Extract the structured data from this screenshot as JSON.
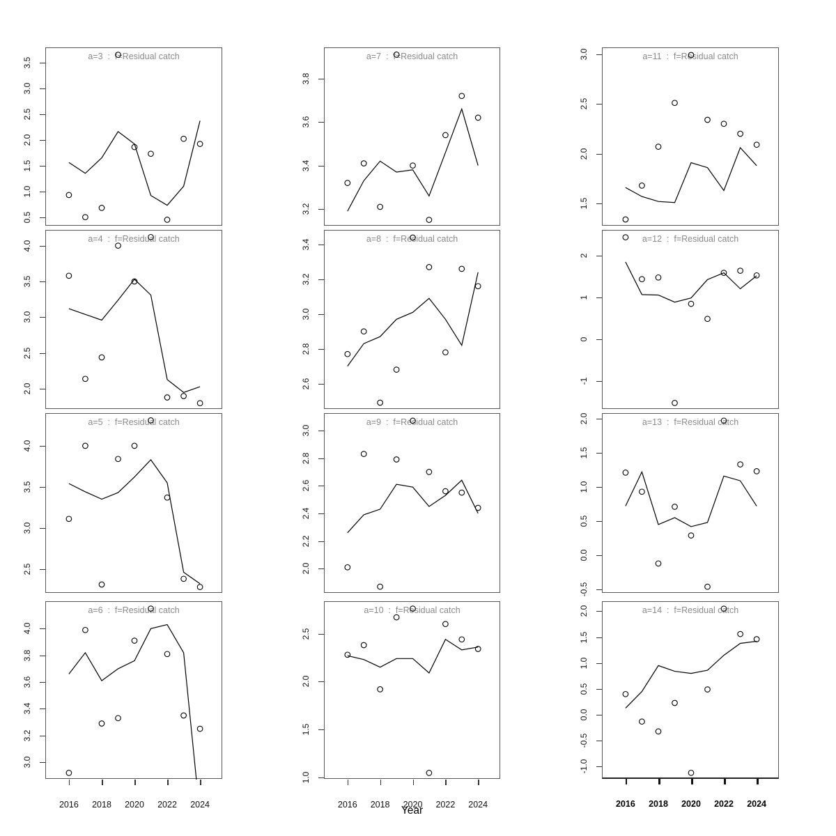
{
  "figure": {
    "xlabel": "Year",
    "x_tick_labels": [
      "2016",
      "2018",
      "2020",
      "2022",
      "2024"
    ]
  },
  "chart_data": {
    "type": "line",
    "description": "4x3 grid of residual-catch panels: fitted line plus open-circle observations per age",
    "xlabel": "Year",
    "x": [
      2016,
      2017,
      2018,
      2019,
      2020,
      2021,
      2022,
      2023,
      2024
    ],
    "x_ticks": [
      2016,
      2018,
      2020,
      2022,
      2024
    ],
    "xlim": [
      2014.6,
      2025.4
    ],
    "grid": false,
    "legend": "none",
    "marker": "open-circle",
    "line_color": "#000000",
    "point_color": "#000000",
    "title_color": "#8a8a8a",
    "panels": [
      {
        "id": "a-3",
        "title": "a=3  :  f=Residual catch",
        "row": 0,
        "col": 0,
        "yticks": [
          "0.5",
          "1.0",
          "1.5",
          "2.0",
          "2.5",
          "3.0",
          "3.5"
        ],
        "ytick_vals": [
          0.5,
          1.0,
          1.5,
          2.0,
          2.5,
          3.0,
          3.5
        ],
        "ylim": [
          0.32,
          3.78
        ],
        "points": [
          0.93,
          0.5,
          0.68,
          3.65,
          1.86,
          1.73,
          0.45,
          2.02,
          1.92
        ],
        "line": [
          1.56,
          1.35,
          1.65,
          2.16,
          1.92,
          0.92,
          0.73,
          1.1,
          2.37
        ]
      },
      {
        "id": "a-4",
        "title": "a=4  :  f=Residual catch",
        "row": 1,
        "col": 0,
        "yticks": [
          "2.0",
          "2.5",
          "3.0",
          "3.5",
          "4.0"
        ],
        "ytick_vals": [
          2.0,
          2.5,
          3.0,
          3.5,
          4.0
        ],
        "ylim": [
          1.71,
          4.21
        ],
        "points": [
          3.58,
          2.14,
          2.44,
          4.0,
          3.5,
          4.12,
          1.88,
          1.9,
          1.8
        ],
        "line": [
          3.12,
          3.04,
          2.96,
          3.24,
          3.53,
          3.31,
          2.13,
          1.95,
          2.03
        ]
      },
      {
        "id": "a-5",
        "title": "a=5  :  f=Residual catch",
        "row": 2,
        "col": 0,
        "yticks": [
          "2.5",
          "3.0",
          "3.5",
          "4.0"
        ],
        "ytick_vals": [
          2.5,
          3.0,
          3.5,
          4.0
        ],
        "ylim": [
          2.2,
          4.39
        ],
        "points": [
          3.11,
          4.0,
          2.31,
          3.84,
          4.0,
          4.31,
          3.37,
          2.38,
          2.28
        ],
        "line": [
          3.54,
          3.44,
          3.35,
          3.43,
          3.62,
          3.83,
          3.55,
          2.46,
          2.32
        ]
      },
      {
        "id": "a-6",
        "title": "a=6  :  f=Residual catch",
        "row": 3,
        "col": 0,
        "yticks": [
          "3.0",
          "3.2",
          "3.4",
          "3.6",
          "3.8",
          "4.0"
        ],
        "ytick_vals": [
          3.0,
          3.2,
          3.4,
          3.6,
          3.8,
          4.0
        ],
        "ylim": [
          2.87,
          4.2
        ],
        "points": [
          2.92,
          3.99,
          3.29,
          3.33,
          3.91,
          4.15,
          3.81,
          3.35,
          3.25
        ],
        "line": [
          3.66,
          3.82,
          3.61,
          3.7,
          3.76,
          4.0,
          4.03,
          3.82,
          2.6
        ]
      },
      {
        "id": "a-7",
        "title": "a=7  :  f=Residual catch",
        "row": 0,
        "col": 1,
        "yticks": [
          "3.2",
          "3.4",
          "3.6",
          "3.8"
        ],
        "ytick_vals": [
          3.2,
          3.4,
          3.6,
          3.8
        ],
        "ylim": [
          3.12,
          3.94
        ],
        "points": [
          3.32,
          3.41,
          3.21,
          3.91,
          3.4,
          3.15,
          3.54,
          3.72,
          3.62
        ],
        "line": [
          3.19,
          3.33,
          3.42,
          3.37,
          3.38,
          3.26,
          3.46,
          3.66,
          3.4
        ]
      },
      {
        "id": "a-8",
        "title": "a=8  :  f=Residual catch",
        "row": 1,
        "col": 1,
        "yticks": [
          "2.6",
          "2.8",
          "3.0",
          "3.2",
          "3.4"
        ],
        "ytick_vals": [
          2.6,
          2.8,
          3.0,
          3.2,
          3.4
        ],
        "ylim": [
          2.45,
          3.48
        ],
        "points": [
          2.77,
          2.9,
          2.49,
          2.68,
          3.44,
          3.27,
          2.78,
          3.26,
          3.16
        ],
        "line": [
          2.7,
          2.83,
          2.87,
          2.97,
          3.01,
          3.09,
          2.97,
          2.82,
          3.24
        ]
      },
      {
        "id": "a-9",
        "title": "a=9  :  f=Residual catch",
        "row": 2,
        "col": 1,
        "yticks": [
          "2.0",
          "2.2",
          "2.4",
          "2.6",
          "2.8",
          "3.0"
        ],
        "ytick_vals": [
          2.0,
          2.2,
          2.4,
          2.6,
          2.8,
          3.0
        ],
        "ylim": [
          1.82,
          3.12
        ],
        "points": [
          2.01,
          2.83,
          1.87,
          2.79,
          3.07,
          2.7,
          2.56,
          2.55,
          2.44
        ],
        "line": [
          2.26,
          2.39,
          2.43,
          2.61,
          2.59,
          2.45,
          2.53,
          2.64,
          2.4
        ]
      },
      {
        "id": "a-10",
        "title": "a=10  :  f=Residual catch",
        "row": 3,
        "col": 1,
        "yticks": [
          "1.0",
          "1.5",
          "2.0",
          "2.5"
        ],
        "ytick_vals": [
          1.0,
          1.5,
          2.0,
          2.5
        ],
        "ylim": [
          0.98,
          2.83
        ],
        "points": [
          2.28,
          2.38,
          1.92,
          2.67,
          2.76,
          1.05,
          2.6,
          2.44,
          2.34
        ],
        "line": [
          2.27,
          2.23,
          2.15,
          2.24,
          2.24,
          2.09,
          2.44,
          2.33,
          2.36
        ]
      },
      {
        "id": "a-11",
        "title": "a=11  :  f=Residual catch",
        "row": 0,
        "col": 2,
        "yticks": [
          "1.5",
          "2.0",
          "2.5",
          "3.0"
        ],
        "ytick_vals": [
          1.5,
          2.0,
          2.5,
          3.0
        ],
        "ylim": [
          1.27,
          3.06
        ],
        "points": [
          1.34,
          1.68,
          2.07,
          2.51,
          2.99,
          2.34,
          2.3,
          2.2,
          2.09
        ],
        "line": [
          1.66,
          1.57,
          1.52,
          1.51,
          1.91,
          1.86,
          1.63,
          2.06,
          1.88
        ]
      },
      {
        "id": "a-12",
        "title": "a=12  :  f=Residual catch",
        "row": 1,
        "col": 2,
        "yticks": [
          "-1",
          "0",
          "1",
          "2"
        ],
        "ytick_vals": [
          -1,
          0,
          1,
          2
        ],
        "ylim": [
          -1.68,
          2.6
        ],
        "points": [
          2.44,
          1.44,
          1.48,
          -1.52,
          0.85,
          0.49,
          1.59,
          1.64,
          1.53
        ],
        "line": [
          1.85,
          1.07,
          1.06,
          0.89,
          0.99,
          1.43,
          1.59,
          1.21,
          1.52
        ]
      },
      {
        "id": "a-13",
        "title": "a=13  :  f=Residual catch",
        "row": 2,
        "col": 2,
        "yticks": [
          "-0.5",
          "0.0",
          "0.5",
          "1.0",
          "1.5",
          "2.0"
        ],
        "ytick_vals": [
          -0.5,
          0.0,
          0.5,
          1.0,
          1.5,
          2.0
        ],
        "ylim": [
          -0.56,
          2.07
        ],
        "points": [
          1.21,
          0.93,
          -0.12,
          0.71,
          0.29,
          -0.46,
          1.97,
          1.33,
          1.23
        ],
        "line": [
          0.72,
          1.22,
          0.45,
          0.55,
          0.42,
          0.48,
          1.16,
          1.09,
          0.72
        ]
      },
      {
        "id": "a-14",
        "title": "a=14  :  f=Residual catch",
        "row": 3,
        "col": 2,
        "yticks": [
          "-1.0",
          "-0.5",
          "0.0",
          "0.5",
          "1.0",
          "1.5",
          "2.0"
        ],
        "ytick_vals": [
          -1.0,
          -0.5,
          0.0,
          0.5,
          1.0,
          1.5,
          2.0
        ],
        "ylim": [
          -1.25,
          2.18
        ],
        "points": [
          0.4,
          -0.13,
          -0.32,
          0.23,
          -1.12,
          0.49,
          2.05,
          1.56,
          1.46
        ],
        "line": [
          0.13,
          0.45,
          0.95,
          0.84,
          0.8,
          0.86,
          1.15,
          1.38,
          1.42
        ]
      }
    ]
  }
}
